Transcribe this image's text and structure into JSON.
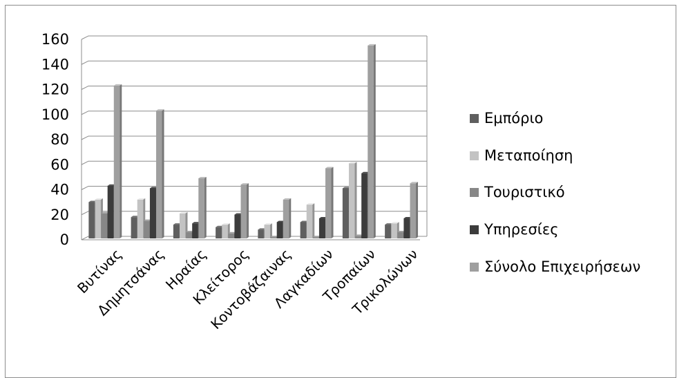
{
  "chart_data": {
    "type": "bar",
    "categories": [
      "Βυτίνας",
      "Δημητσάνας",
      "Ηραίας",
      "Κλείτορος",
      "Κοντοβάζαινας",
      "Λαγκαδίων",
      "Τροπαίων",
      "Τρικολώνων"
    ],
    "series": [
      {
        "name": "Εμπόριο",
        "color": "#5f5f5f",
        "values": [
          29,
          17,
          11,
          9,
          7,
          13,
          40,
          11
        ]
      },
      {
        "name": "Μεταποίηση",
        "color": "#c3c3c3",
        "values": [
          31,
          31,
          20,
          11,
          11,
          27,
          60,
          12
        ]
      },
      {
        "name": "Τουριστικό",
        "color": "#878787",
        "values": [
          20,
          14,
          5,
          4,
          1,
          1,
          2,
          5
        ]
      },
      {
        "name": "Υπηρεσίες",
        "color": "#3c3c3c",
        "values": [
          42,
          40,
          12,
          19,
          13,
          16,
          52,
          16
        ]
      },
      {
        "name": "Σύνολο Επιχειρήσεων",
        "color": "#9f9f9f",
        "values": [
          122,
          102,
          48,
          43,
          31,
          56,
          154,
          44
        ]
      }
    ],
    "ylim": [
      0,
      160
    ],
    "yticks": [
      0,
      20,
      40,
      60,
      80,
      100,
      120,
      140,
      160
    ],
    "grid": true,
    "legend": "right",
    "title": "",
    "xlabel": "",
    "ylabel": ""
  }
}
